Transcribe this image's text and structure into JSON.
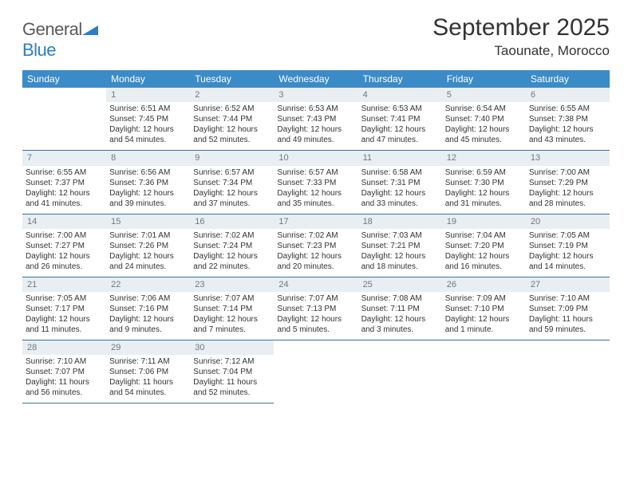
{
  "branding": {
    "word1": "General",
    "word2": "Blue"
  },
  "header": {
    "month_title": "September 2025",
    "location": "Taounate, Morocco"
  },
  "style": {
    "header_bg": "#3b8bc9",
    "header_fg": "#ffffff",
    "daynum_bg": "#e8eef2",
    "daynum_fg": "#6c7a84",
    "rule_color": "#3b71a3",
    "title_fontsize": 30,
    "location_fontsize": 17,
    "head_fontsize": 12,
    "cell_fontsize": 10
  },
  "daynames": [
    "Sunday",
    "Monday",
    "Tuesday",
    "Wednesday",
    "Thursday",
    "Friday",
    "Saturday"
  ],
  "weeks": [
    {
      "nums": [
        "",
        "1",
        "2",
        "3",
        "4",
        "5",
        "6"
      ],
      "cells": [
        null,
        {
          "sr": "Sunrise: 6:51 AM",
          "ss": "Sunset: 7:45 PM",
          "d1": "Daylight: 12 hours",
          "d2": "and 54 minutes."
        },
        {
          "sr": "Sunrise: 6:52 AM",
          "ss": "Sunset: 7:44 PM",
          "d1": "Daylight: 12 hours",
          "d2": "and 52 minutes."
        },
        {
          "sr": "Sunrise: 6:53 AM",
          "ss": "Sunset: 7:43 PM",
          "d1": "Daylight: 12 hours",
          "d2": "and 49 minutes."
        },
        {
          "sr": "Sunrise: 6:53 AM",
          "ss": "Sunset: 7:41 PM",
          "d1": "Daylight: 12 hours",
          "d2": "and 47 minutes."
        },
        {
          "sr": "Sunrise: 6:54 AM",
          "ss": "Sunset: 7:40 PM",
          "d1": "Daylight: 12 hours",
          "d2": "and 45 minutes."
        },
        {
          "sr": "Sunrise: 6:55 AM",
          "ss": "Sunset: 7:38 PM",
          "d1": "Daylight: 12 hours",
          "d2": "and 43 minutes."
        }
      ]
    },
    {
      "nums": [
        "7",
        "8",
        "9",
        "10",
        "11",
        "12",
        "13"
      ],
      "cells": [
        {
          "sr": "Sunrise: 6:55 AM",
          "ss": "Sunset: 7:37 PM",
          "d1": "Daylight: 12 hours",
          "d2": "and 41 minutes."
        },
        {
          "sr": "Sunrise: 6:56 AM",
          "ss": "Sunset: 7:36 PM",
          "d1": "Daylight: 12 hours",
          "d2": "and 39 minutes."
        },
        {
          "sr": "Sunrise: 6:57 AM",
          "ss": "Sunset: 7:34 PM",
          "d1": "Daylight: 12 hours",
          "d2": "and 37 minutes."
        },
        {
          "sr": "Sunrise: 6:57 AM",
          "ss": "Sunset: 7:33 PM",
          "d1": "Daylight: 12 hours",
          "d2": "and 35 minutes."
        },
        {
          "sr": "Sunrise: 6:58 AM",
          "ss": "Sunset: 7:31 PM",
          "d1": "Daylight: 12 hours",
          "d2": "and 33 minutes."
        },
        {
          "sr": "Sunrise: 6:59 AM",
          "ss": "Sunset: 7:30 PM",
          "d1": "Daylight: 12 hours",
          "d2": "and 31 minutes."
        },
        {
          "sr": "Sunrise: 7:00 AM",
          "ss": "Sunset: 7:29 PM",
          "d1": "Daylight: 12 hours",
          "d2": "and 28 minutes."
        }
      ]
    },
    {
      "nums": [
        "14",
        "15",
        "16",
        "17",
        "18",
        "19",
        "20"
      ],
      "cells": [
        {
          "sr": "Sunrise: 7:00 AM",
          "ss": "Sunset: 7:27 PM",
          "d1": "Daylight: 12 hours",
          "d2": "and 26 minutes."
        },
        {
          "sr": "Sunrise: 7:01 AM",
          "ss": "Sunset: 7:26 PM",
          "d1": "Daylight: 12 hours",
          "d2": "and 24 minutes."
        },
        {
          "sr": "Sunrise: 7:02 AM",
          "ss": "Sunset: 7:24 PM",
          "d1": "Daylight: 12 hours",
          "d2": "and 22 minutes."
        },
        {
          "sr": "Sunrise: 7:02 AM",
          "ss": "Sunset: 7:23 PM",
          "d1": "Daylight: 12 hours",
          "d2": "and 20 minutes."
        },
        {
          "sr": "Sunrise: 7:03 AM",
          "ss": "Sunset: 7:21 PM",
          "d1": "Daylight: 12 hours",
          "d2": "and 18 minutes."
        },
        {
          "sr": "Sunrise: 7:04 AM",
          "ss": "Sunset: 7:20 PM",
          "d1": "Daylight: 12 hours",
          "d2": "and 16 minutes."
        },
        {
          "sr": "Sunrise: 7:05 AM",
          "ss": "Sunset: 7:19 PM",
          "d1": "Daylight: 12 hours",
          "d2": "and 14 minutes."
        }
      ]
    },
    {
      "nums": [
        "21",
        "22",
        "23",
        "24",
        "25",
        "26",
        "27"
      ],
      "cells": [
        {
          "sr": "Sunrise: 7:05 AM",
          "ss": "Sunset: 7:17 PM",
          "d1": "Daylight: 12 hours",
          "d2": "and 11 minutes."
        },
        {
          "sr": "Sunrise: 7:06 AM",
          "ss": "Sunset: 7:16 PM",
          "d1": "Daylight: 12 hours",
          "d2": "and 9 minutes."
        },
        {
          "sr": "Sunrise: 7:07 AM",
          "ss": "Sunset: 7:14 PM",
          "d1": "Daylight: 12 hours",
          "d2": "and 7 minutes."
        },
        {
          "sr": "Sunrise: 7:07 AM",
          "ss": "Sunset: 7:13 PM",
          "d1": "Daylight: 12 hours",
          "d2": "and 5 minutes."
        },
        {
          "sr": "Sunrise: 7:08 AM",
          "ss": "Sunset: 7:11 PM",
          "d1": "Daylight: 12 hours",
          "d2": "and 3 minutes."
        },
        {
          "sr": "Sunrise: 7:09 AM",
          "ss": "Sunset: 7:10 PM",
          "d1": "Daylight: 12 hours",
          "d2": "and 1 minute."
        },
        {
          "sr": "Sunrise: 7:10 AM",
          "ss": "Sunset: 7:09 PM",
          "d1": "Daylight: 11 hours",
          "d2": "and 59 minutes."
        }
      ]
    },
    {
      "nums": [
        "28",
        "29",
        "30",
        "",
        "",
        "",
        ""
      ],
      "cells": [
        {
          "sr": "Sunrise: 7:10 AM",
          "ss": "Sunset: 7:07 PM",
          "d1": "Daylight: 11 hours",
          "d2": "and 56 minutes."
        },
        {
          "sr": "Sunrise: 7:11 AM",
          "ss": "Sunset: 7:06 PM",
          "d1": "Daylight: 11 hours",
          "d2": "and 54 minutes."
        },
        {
          "sr": "Sunrise: 7:12 AM",
          "ss": "Sunset: 7:04 PM",
          "d1": "Daylight: 11 hours",
          "d2": "and 52 minutes."
        },
        null,
        null,
        null,
        null
      ]
    }
  ]
}
